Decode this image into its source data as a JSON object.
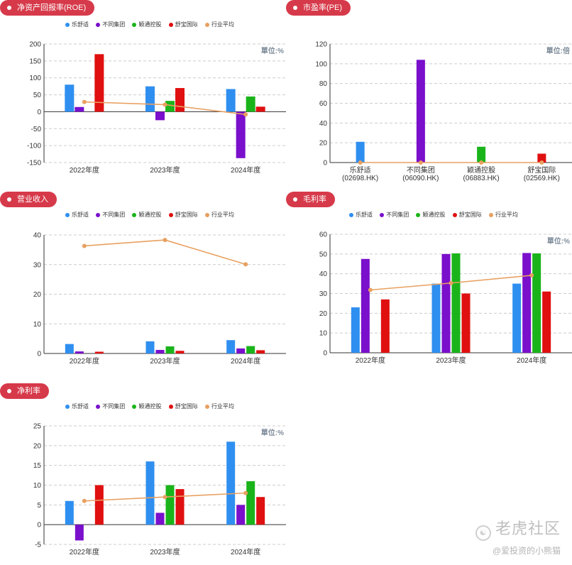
{
  "legend": [
    {
      "label": "乐舒适",
      "color": "#2f8ff0"
    },
    {
      "label": "不同集团",
      "color": "#7a0fcc"
    },
    {
      "label": "颖通控股",
      "color": "#1ab41a"
    },
    {
      "label": "舒宝国际",
      "color": "#e01010"
    },
    {
      "label": "行业平均",
      "color": "#e8a060"
    }
  ],
  "chart_data": [
    {
      "id": "roe",
      "type": "bar",
      "title": "净资产回报率(ROE)",
      "unit_label": "單位:%",
      "categories": [
        "2022年度",
        "2023年度",
        "2024年度"
      ],
      "series": [
        {
          "name": "乐舒适",
          "values": [
            80,
            75,
            67
          ]
        },
        {
          "name": "不同集团",
          "values": [
            14,
            -25,
            -137
          ]
        },
        {
          "name": "颖通控股",
          "values": [
            null,
            32,
            45
          ]
        },
        {
          "name": "舒宝国际",
          "values": [
            170,
            70,
            15
          ]
        }
      ],
      "average": {
        "name": "行业平均",
        "values": [
          29,
          21,
          -8
        ]
      },
      "ylim": [
        -150,
        200
      ],
      "yticks": [
        -150,
        -100,
        -50,
        0,
        50,
        100,
        150,
        200
      ],
      "grid": true,
      "legend": "top"
    },
    {
      "id": "pe",
      "type": "bar",
      "title": "市盈率(PE)",
      "unit_label": "單位:倍",
      "categories": [
        "乐舒适\n(02698.HK)",
        "不同集团\n(06090.HK)",
        "颖通控股\n(06883.HK)",
        "舒宝国际\n(02569.HK)"
      ],
      "values": [
        21,
        104,
        16,
        9
      ],
      "colors": [
        "#2f8ff0",
        "#7a0fcc",
        "#1ab41a",
        "#e01010"
      ],
      "average": {
        "name": "行业平均",
        "values": [
          0,
          0,
          0,
          0
        ]
      },
      "ylim": [
        0,
        120
      ],
      "yticks": [
        0,
        20,
        40,
        60,
        80,
        100,
        120
      ],
      "grid": true
    },
    {
      "id": "revenue",
      "type": "bar",
      "title": "营业收入",
      "categories": [
        "2022年度",
        "2023年度",
        "2024年度"
      ],
      "series": [
        {
          "name": "乐舒适",
          "values": [
            3.2,
            4.1,
            4.5
          ]
        },
        {
          "name": "不同集团",
          "values": [
            0.7,
            1.2,
            1.7
          ]
        },
        {
          "name": "颖通控股",
          "values": [
            null,
            2.4,
            2.5
          ]
        },
        {
          "name": "舒宝国际",
          "values": [
            0.6,
            0.9,
            1.1
          ]
        }
      ],
      "average": {
        "name": "行业平均",
        "values": [
          36.3,
          38.3,
          30.1
        ]
      },
      "ylim": [
        0,
        40
      ],
      "yticks": [
        0,
        10,
        20,
        30,
        40
      ],
      "grid": true,
      "legend": "top"
    },
    {
      "id": "gross",
      "type": "bar",
      "title": "毛利率",
      "unit_label": "單位:%",
      "categories": [
        "2022年度",
        "2023年度",
        "2024年度"
      ],
      "series": [
        {
          "name": "乐舒适",
          "values": [
            23,
            35,
            35
          ]
        },
        {
          "name": "不同集团",
          "values": [
            47.5,
            50,
            50.5
          ]
        },
        {
          "name": "颖通控股",
          "values": [
            null,
            50.3,
            50.3
          ]
        },
        {
          "name": "舒宝国际",
          "values": [
            27,
            30,
            31
          ]
        }
      ],
      "average": {
        "name": "行业平均",
        "values": [
          31.8,
          35.3,
          39.2
        ]
      },
      "ylim": [
        0,
        60
      ],
      "yticks": [
        0,
        10,
        20,
        30,
        40,
        50,
        60
      ],
      "grid": true,
      "legend": "top"
    },
    {
      "id": "net",
      "type": "bar",
      "title": "净利率",
      "unit_label": "單位:%",
      "categories": [
        "2022年度",
        "2023年度",
        "2024年度"
      ],
      "series": [
        {
          "name": "乐舒适",
          "values": [
            6,
            16,
            21
          ]
        },
        {
          "name": "不同集团",
          "values": [
            -4,
            3,
            5
          ]
        },
        {
          "name": "颖通控股",
          "values": [
            null,
            10,
            11
          ]
        },
        {
          "name": "舒宝国际",
          "values": [
            10,
            9,
            7
          ]
        }
      ],
      "average": {
        "name": "行业平均",
        "values": [
          6,
          7,
          8
        ]
      },
      "ylim": [
        -5,
        25
      ],
      "yticks": [
        -5,
        0,
        5,
        10,
        15,
        20,
        25
      ],
      "grid": true,
      "legend": "top"
    }
  ],
  "watermark": {
    "main": "老虎社区",
    "sub": "@爱投资的小熊猫"
  }
}
